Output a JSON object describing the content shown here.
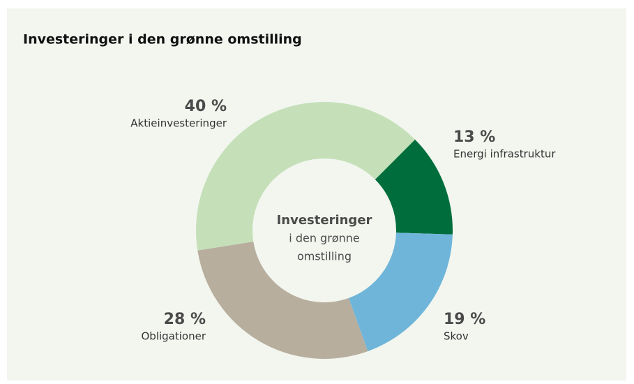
{
  "chart_data": {
    "type": "donut",
    "title": "Investeringer i den grønne omstilling",
    "center_label": [
      "Investeringer",
      "i den grønne",
      "omstilling"
    ],
    "categories": [
      "Aktieinvesteringer",
      "Energi infrastruktur",
      "Skov",
      "Obligationer"
    ],
    "values": [
      40,
      13,
      19,
      28
    ],
    "value_labels": [
      "40 %",
      "13 %",
      "19 %",
      "28 %"
    ],
    "colors": [
      "#c5e0b9",
      "#006e3c",
      "#6fb5d9",
      "#b8ae9e"
    ]
  }
}
